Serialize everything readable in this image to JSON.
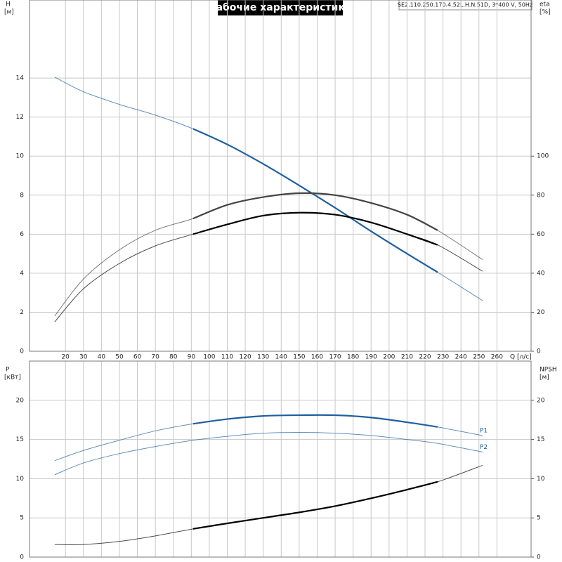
{
  "chart_data": [
    {
      "type": "line",
      "title": "Рабочие характеристики",
      "subtitle": "SE2.110.250.170.4.52L.H.N.51D, 3*400 V, 50Hz",
      "ylabel": "H",
      "yunit": "[м]",
      "y2label": "eta",
      "y2unit": "[%]",
      "xlabel": "Q [л/с]",
      "x": [
        14,
        30,
        50,
        70,
        91,
        110,
        130,
        150,
        170,
        190,
        210,
        227,
        252
      ],
      "xlim": [
        0,
        279
      ],
      "xticks": [
        20,
        30,
        40,
        50,
        60,
        70,
        80,
        90,
        100,
        110,
        120,
        130,
        140,
        150,
        160,
        170,
        180,
        190,
        200,
        210,
        220,
        230,
        240,
        250,
        260
      ],
      "ylim": [
        0,
        18
      ],
      "yticks": [
        0,
        2,
        4,
        6,
        8,
        10,
        12,
        14
      ],
      "y2lim": [
        0,
        180
      ],
      "y2ticks": [
        0,
        20,
        40,
        60,
        80,
        100
      ],
      "grid": true,
      "operating_range": [
        91,
        227
      ],
      "series": [
        {
          "color": "#1f5fa0",
          "emphasis": true,
          "values": [
            14.05,
            13.3,
            12.65,
            12.1,
            11.4,
            10.6,
            9.6,
            8.5,
            7.35,
            6.15,
            5.0,
            4.05,
            2.6
          ]
        },
        {
          "color": "#444444",
          "emphasis": true,
          "axis": "y2",
          "values": [
            18,
            37,
            52,
            62,
            68,
            75,
            79,
            81,
            80,
            76,
            70,
            62,
            47
          ]
        },
        {
          "color": "#000000",
          "emphasis": true,
          "axis": "y2",
          "values": [
            15,
            32,
            45,
            54,
            60,
            65,
            69.5,
            71,
            70,
            66,
            60,
            54.5,
            41
          ]
        }
      ]
    },
    {
      "type": "line",
      "ylabel": "P",
      "yunit": "[кВт]",
      "y2label": "NPSH",
      "y2unit": "[м]",
      "x": [
        14,
        30,
        50,
        70,
        91,
        110,
        130,
        150,
        170,
        190,
        210,
        227,
        252
      ],
      "xlim": [
        0,
        279
      ],
      "ylim": [
        0,
        25
      ],
      "yticks": [
        0,
        5,
        10,
        15,
        20
      ],
      "y2lim": [
        0,
        25
      ],
      "y2ticks": [
        0,
        5,
        10,
        15,
        20
      ],
      "grid": true,
      "operating_range": [
        91,
        227
      ],
      "series": [
        {
          "name": "P1",
          "color": "#1f5fa0",
          "emphasis": true,
          "values": [
            12.3,
            13.6,
            14.9,
            16.1,
            17.0,
            17.6,
            18.0,
            18.1,
            18.1,
            17.8,
            17.2,
            16.6,
            15.5
          ]
        },
        {
          "name": "P2",
          "color": "#1f5fa0",
          "emphasis": false,
          "values": [
            10.5,
            12.0,
            13.2,
            14.1,
            14.9,
            15.4,
            15.8,
            15.9,
            15.8,
            15.5,
            15.0,
            14.5,
            13.4
          ]
        },
        {
          "color": "#000000",
          "emphasis": true,
          "axis": "y2",
          "values": [
            1.6,
            1.6,
            2.0,
            2.7,
            3.6,
            4.3,
            5.0,
            5.7,
            6.5,
            7.5,
            8.6,
            9.6,
            11.7
          ]
        }
      ]
    }
  ]
}
